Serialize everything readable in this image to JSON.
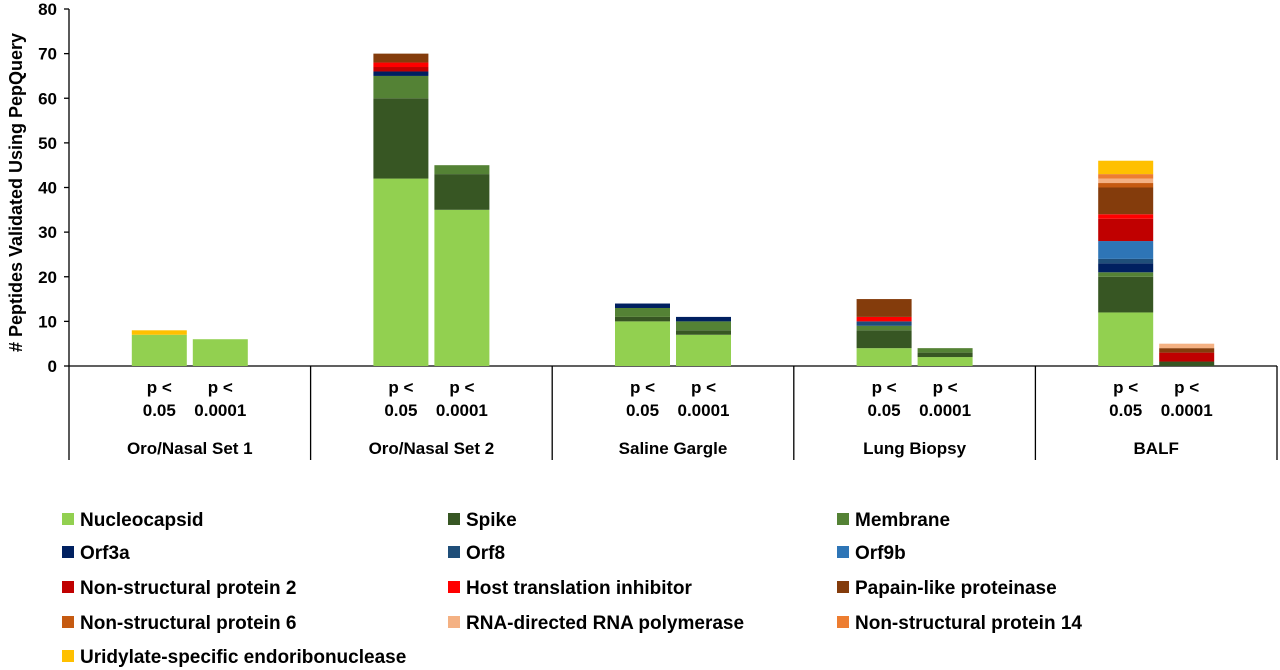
{
  "chart_data": {
    "type": "bar",
    "stacked": true,
    "ylabel": "# Peptides Validated Using PepQuery",
    "ylim": [
      0,
      80
    ],
    "yticks": [
      0,
      10,
      20,
      30,
      40,
      50,
      60,
      70,
      80
    ],
    "grid": false,
    "legend_position": "bottom",
    "groups": [
      "Oro/Nasal Set 1",
      "Oro/Nasal Set 2",
      "Saline Gargle",
      "Lung Biopsy",
      "BALF"
    ],
    "bar_labels": [
      [
        "p <",
        "0.05"
      ],
      [
        "p <",
        "0.0001"
      ]
    ],
    "categories": [
      "Oro/Nasal Set 1 p < 0.05",
      "Oro/Nasal Set 1 p < 0.0001",
      "Oro/Nasal Set 2 p < 0.05",
      "Oro/Nasal Set 2 p < 0.0001",
      "Saline Gargle p < 0.05",
      "Saline Gargle p < 0.0001",
      "Lung Biopsy p < 0.05",
      "Lung Biopsy p < 0.0001",
      "BALF p < 0.05",
      "BALF p < 0.0001"
    ],
    "series": [
      {
        "name": "Nucleocapsid",
        "color": "#92d050",
        "values": [
          7,
          6,
          42,
          35,
          10,
          7,
          4,
          2,
          12,
          0
        ]
      },
      {
        "name": "Spike",
        "color": "#375623",
        "values": [
          0,
          0,
          18,
          8,
          1,
          1,
          4,
          1,
          8,
          1
        ]
      },
      {
        "name": "Membrane",
        "color": "#548235",
        "values": [
          0,
          0,
          5,
          2,
          2,
          2,
          1,
          1,
          1,
          0
        ]
      },
      {
        "name": "Orf3a",
        "color": "#002060",
        "values": [
          0,
          0,
          1,
          0,
          1,
          1,
          0,
          0,
          2,
          0
        ]
      },
      {
        "name": "Orf8",
        "color": "#1f4e79",
        "values": [
          0,
          0,
          0,
          0,
          0,
          0,
          1,
          0,
          1,
          0
        ]
      },
      {
        "name": "Orf9b",
        "color": "#2e75b6",
        "values": [
          0,
          0,
          0,
          0,
          0,
          0,
          0,
          0,
          4,
          0
        ]
      },
      {
        "name": "Non-structural protein 2",
        "color": "#c00000",
        "values": [
          0,
          0,
          1,
          0,
          0,
          0,
          0,
          0,
          5,
          2
        ]
      },
      {
        "name": "Host translation inhibitor",
        "color": "#ff0000",
        "values": [
          0,
          0,
          1,
          0,
          0,
          0,
          1,
          0,
          1,
          0
        ]
      },
      {
        "name": "Papain-like proteinase",
        "color": "#843c0c",
        "values": [
          0,
          0,
          2,
          0,
          0,
          0,
          4,
          0,
          6,
          1
        ]
      },
      {
        "name": "Non-structural protein 6",
        "color": "#c55a11",
        "values": [
          0,
          0,
          0,
          0,
          0,
          0,
          0,
          0,
          1,
          0
        ]
      },
      {
        "name": "RNA-directed RNA polymerase",
        "color": "#f4b183",
        "values": [
          0,
          0,
          0,
          0,
          0,
          0,
          0,
          0,
          1,
          1
        ]
      },
      {
        "name": "Non-structural protein 14",
        "color": "#ed7d31",
        "values": [
          0,
          0,
          0,
          0,
          0,
          0,
          0,
          0,
          1,
          0
        ]
      },
      {
        "name": "Uridylate-specific endoribonuclease",
        "color": "#ffc000",
        "values": [
          1,
          0,
          0,
          0,
          0,
          0,
          0,
          0,
          3,
          0
        ]
      }
    ]
  }
}
